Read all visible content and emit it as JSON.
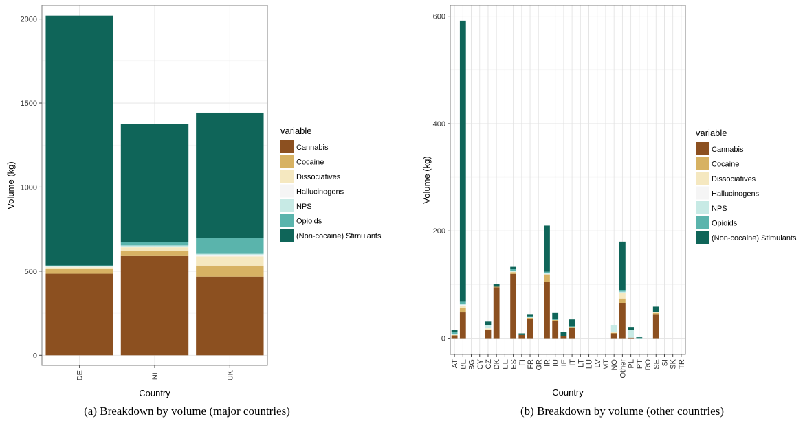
{
  "palette": {
    "Cannabis": "#8c5020",
    "Cocaine": "#d7b263",
    "Dissociatives": "#f5e8c0",
    "Hallucinogens": "#f5f5f5",
    "NPS": "#c7eae5",
    "Opioids": "#5ab4ac",
    "(Non-cocaine) Stimulants": "#0f6559"
  },
  "chart_data": [
    {
      "type": "bar",
      "stacked": true,
      "caption": "(a)  Breakdown by volume (major countries)",
      "xlabel": "Country",
      "ylabel": "Volume (kg)",
      "ylim": [
        -60,
        2080
      ],
      "yticks": [
        0,
        500,
        1000,
        1500,
        2000
      ],
      "grid": true,
      "legend_position": "right",
      "legend_title": "variable",
      "categories": [
        "DE",
        "NL",
        "UK"
      ],
      "series": [
        {
          "name": "Cannabis",
          "values": [
            485,
            590,
            468
          ]
        },
        {
          "name": "Cocaine",
          "values": [
            30,
            32,
            65
          ]
        },
        {
          "name": "Dissociatives",
          "values": [
            8,
            20,
            55
          ]
        },
        {
          "name": "Hallucinogens",
          "values": [
            3,
            3,
            5
          ]
        },
        {
          "name": "NPS",
          "values": [
            4,
            8,
            10
          ]
        },
        {
          "name": "Opioids",
          "values": [
            4,
            22,
            95
          ]
        },
        {
          "name": "(Non-cocaine) Stimulants",
          "values": [
            1486,
            700,
            745
          ]
        }
      ]
    },
    {
      "type": "bar",
      "stacked": true,
      "caption": "(b)  Breakdown by volume (other countries)",
      "xlabel": "Country",
      "ylabel": "Volume (kg)",
      "ylim": [
        -30,
        620
      ],
      "yticks": [
        0,
        200,
        400,
        600
      ],
      "grid": true,
      "legend_position": "right",
      "legend_title": "variable",
      "categories": [
        "AT",
        "BE",
        "BG",
        "CY",
        "CZ",
        "DK",
        "EE",
        "ES",
        "FI",
        "FR",
        "GR",
        "HR",
        "HU",
        "IE",
        "IT",
        "LT",
        "LU",
        "LV",
        "MT",
        "NO",
        "Other",
        "PL",
        "PT",
        "RO",
        "SE",
        "SI",
        "SK",
        "TR"
      ],
      "series": [
        {
          "name": "Cannabis",
          "values": [
            5,
            48,
            0,
            0,
            15,
            95,
            0,
            120,
            6,
            36,
            0,
            105,
            32,
            4,
            20,
            0,
            0,
            0,
            0,
            9,
            66,
            1,
            0,
            0,
            45,
            0,
            0,
            0
          ]
        },
        {
          "name": "Cocaine",
          "values": [
            1,
            8,
            0,
            0,
            1,
            1,
            0,
            3,
            0,
            2,
            0,
            14,
            2,
            0,
            1,
            0,
            0,
            0,
            0,
            1,
            8,
            0,
            0,
            0,
            2,
            0,
            0,
            0
          ]
        },
        {
          "name": "Dissociatives",
          "values": [
            0,
            5,
            0,
            0,
            2,
            0,
            0,
            1,
            0,
            0,
            0,
            0,
            0,
            0,
            0,
            0,
            0,
            0,
            0,
            1,
            10,
            0,
            0,
            0,
            1,
            0,
            0,
            0
          ]
        },
        {
          "name": "Hallucinogens",
          "values": [
            0,
            1,
            0,
            0,
            1,
            0,
            0,
            0,
            0,
            0,
            0,
            1,
            0,
            0,
            0,
            0,
            0,
            0,
            0,
            1,
            1,
            0,
            0,
            0,
            0,
            0,
            0,
            0
          ]
        },
        {
          "name": "NPS",
          "values": [
            2,
            2,
            0,
            0,
            5,
            0,
            0,
            2,
            0,
            1,
            0,
            1,
            0,
            0,
            0,
            0,
            0,
            0,
            0,
            12,
            2,
            14,
            0,
            0,
            0,
            0,
            0,
            0
          ]
        },
        {
          "name": "Opioids",
          "values": [
            4,
            4,
            0,
            0,
            1,
            0,
            0,
            3,
            0,
            2,
            0,
            3,
            1,
            0,
            1,
            0,
            0,
            0,
            0,
            1,
            2,
            1,
            1,
            0,
            1,
            0,
            0,
            0
          ]
        },
        {
          "name": "(Non-cocaine) Stimulants",
          "values": [
            4,
            524,
            0,
            0,
            6,
            5,
            0,
            4,
            3,
            4,
            0,
            86,
            12,
            8,
            13,
            0,
            0,
            0,
            0,
            0,
            91,
            5,
            1,
            0,
            10,
            0,
            0,
            0
          ]
        }
      ]
    }
  ]
}
